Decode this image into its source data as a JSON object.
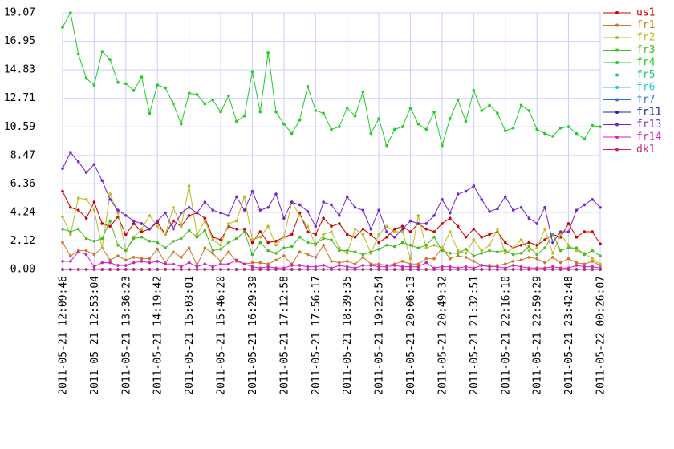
{
  "chart_data": {
    "type": "line",
    "categories": [
      "2011-05-21 12:09:46",
      null,
      null,
      null,
      "2011-05-21 12:53:04",
      null,
      null,
      null,
      "2011-05-21 13:36:23",
      null,
      null,
      null,
      "2011-05-21 14:19:42",
      null,
      null,
      null,
      "2011-05-21 15:03:01",
      null,
      null,
      null,
      "2011-05-21 15:46:20",
      null,
      null,
      null,
      "2011-05-21 16:29:39",
      null,
      null,
      null,
      "2011-05-21 17:12:58",
      null,
      null,
      null,
      "2011-05-21 17:56:17",
      null,
      null,
      null,
      "2011-05-21 18:39:35",
      null,
      null,
      null,
      "2011-05-21 19:22:54",
      null,
      null,
      null,
      "2011-05-21 20:06:13",
      null,
      null,
      null,
      "2011-05-21 20:49:32",
      null,
      null,
      null,
      "2011-05-21 21:32:51",
      null,
      null,
      null,
      "2011-05-21 22:16:10",
      null,
      null,
      null,
      "2011-05-21 22:59:29",
      null,
      null,
      null,
      "2011-05-21 23:42:48",
      null,
      null,
      null,
      "2011-05-22 00:26:07"
    ],
    "ylim": [
      0,
      19.07
    ],
    "yticks": [
      {
        "value": 0,
        "label": "0.00"
      },
      2.12,
      4.24,
      6.36,
      8.47,
      10.59,
      12.71,
      14.83,
      16.95,
      19.07
    ],
    "grid": true,
    "legend": "right",
    "series": [
      {
        "name": "us1",
        "color": "#cc0000",
        "values": [
          5.8,
          4.6,
          4.4,
          3.8,
          5.0,
          3.4,
          3.2,
          3.9,
          2.6,
          3.4,
          2.8,
          3.0,
          3.5,
          2.6,
          3.6,
          3.2,
          4.0,
          4.2,
          3.8,
          2.4,
          2.2,
          3.2,
          3.0,
          3.0,
          2.0,
          2.8,
          2.0,
          2.1,
          2.4,
          2.6,
          4.2,
          2.8,
          2.6,
          3.8,
          3.2,
          3.4,
          2.6,
          2.4,
          3.0,
          2.6,
          2.0,
          2.4,
          3.0,
          3.2,
          2.8,
          3.4,
          3.0,
          2.8,
          3.4,
          3.8,
          3.2,
          2.4,
          3.0,
          2.4,
          2.6,
          2.8,
          2.0,
          1.6,
          1.8,
          2.0,
          1.8,
          2.2,
          2.6,
          2.4,
          3.4,
          2.4,
          2.8,
          2.8,
          1.9
        ]
      },
      {
        "name": "fr1",
        "color": "#cc7722",
        "values": [
          2.0,
          1.0,
          1.4,
          1.4,
          1.1,
          1.6,
          0.7,
          1.0,
          0.7,
          0.9,
          0.8,
          0.8,
          1.5,
          0.5,
          1.3,
          0.9,
          1.6,
          0.3,
          1.6,
          1.2,
          0.6,
          1.3,
          0.6,
          0.4,
          0.5,
          0.5,
          0.4,
          0.7,
          1.0,
          0.4,
          1.3,
          1.1,
          0.9,
          1.8,
          0.6,
          0.5,
          0.6,
          0.4,
          0.9,
          0.4,
          0.4,
          0.3,
          0.4,
          0.6,
          0.4,
          0.4,
          0.8,
          0.8,
          1.6,
          0.8,
          1.0,
          0.9,
          0.6,
          0.3,
          0.3,
          0.3,
          0.4,
          0.6,
          0.7,
          0.9,
          0.8,
          0.5,
          0.9,
          0.5,
          0.8,
          0.5,
          0.4,
          0.6,
          0.3
        ]
      },
      {
        "name": "fr2",
        "color": "#bbbb22",
        "values": [
          3.9,
          2.6,
          5.3,
          5.2,
          4.4,
          1.6,
          5.6,
          4.2,
          1.4,
          2.4,
          3.0,
          4.0,
          3.2,
          2.6,
          4.6,
          3.2,
          6.2,
          2.6,
          3.6,
          2.2,
          1.8,
          3.4,
          3.6,
          5.4,
          2.2,
          2.4,
          3.2,
          1.8,
          2.4,
          5.0,
          4.0,
          3.2,
          1.8,
          2.6,
          2.8,
          1.6,
          1.2,
          3.0,
          2.6,
          1.2,
          2.6,
          3.2,
          2.8,
          2.8,
          0.8,
          4.0,
          1.6,
          1.8,
          1.6,
          2.8,
          1.4,
          1.2,
          2.2,
          1.4,
          1.8,
          3.0,
          1.2,
          1.6,
          2.2,
          1.4,
          1.6,
          3.0,
          1.2,
          2.6,
          1.8,
          1.4,
          1.2,
          0.8,
          0.4
        ]
      },
      {
        "name": "fr3",
        "color": "#44bb22",
        "values": [
          3.0,
          2.8,
          3.0,
          2.3,
          2.1,
          2.3,
          3.6,
          1.8,
          1.4,
          2.3,
          2.4,
          2.1,
          2.0,
          1.6,
          2.1,
          2.3,
          2.9,
          2.4,
          2.9,
          1.4,
          1.5,
          2.0,
          2.3,
          2.8,
          1.1,
          2.0,
          1.4,
          1.2,
          1.6,
          1.7,
          2.4,
          2.0,
          1.9,
          2.3,
          2.2,
          1.4,
          1.4,
          1.3,
          1.1,
          1.3,
          1.5,
          1.8,
          1.7,
          2.0,
          1.8,
          1.6,
          1.8,
          2.4,
          1.4,
          1.2,
          1.2,
          1.5,
          1.0,
          1.2,
          1.4,
          1.3,
          1.4,
          1.1,
          1.2,
          1.7,
          1.1,
          1.6,
          2.6,
          1.4,
          1.6,
          1.6,
          1.1,
          1.4,
          1.0
        ]
      },
      {
        "name": "fr4",
        "color": "#22cc22",
        "values": [
          18.0,
          19.07,
          16.0,
          14.2,
          13.7,
          16.2,
          15.6,
          13.9,
          13.8,
          13.3,
          14.3,
          11.6,
          13.7,
          13.5,
          12.3,
          10.8,
          13.1,
          13.0,
          12.3,
          12.6,
          11.7,
          12.9,
          11.0,
          11.4,
          14.7,
          11.7,
          16.1,
          11.7,
          10.8,
          10.1,
          11.1,
          13.6,
          11.8,
          11.6,
          10.4,
          10.6,
          12.0,
          11.4,
          13.2,
          10.1,
          11.2,
          9.2,
          10.4,
          10.6,
          12.0,
          10.8,
          10.4,
          11.7,
          9.2,
          11.2,
          12.6,
          11.0,
          13.3,
          11.8,
          12.2,
          11.6,
          10.3,
          10.5,
          12.2,
          11.8,
          10.4,
          10.1,
          9.9,
          10.5,
          10.6,
          10.1,
          9.7,
          10.7,
          10.6
        ]
      },
      {
        "name": "fr5",
        "color": "#22cc77",
        "values": [
          0,
          0,
          0,
          0,
          0,
          0,
          0,
          0,
          0,
          0,
          0,
          0,
          0,
          0,
          0,
          0,
          0,
          0,
          0,
          0,
          0,
          0,
          0,
          0,
          0,
          0,
          0,
          0,
          0,
          0,
          0,
          0,
          0,
          0,
          0,
          0,
          0,
          0,
          0,
          0,
          0,
          0,
          0,
          0,
          0,
          0,
          0,
          0,
          0,
          0,
          0,
          0,
          0,
          0,
          0,
          0,
          0,
          0,
          0,
          0,
          0,
          0,
          0,
          0,
          0,
          0,
          0,
          0,
          0
        ]
      },
      {
        "name": "fr6",
        "color": "#22cccc",
        "values": [
          0,
          0,
          0,
          0,
          0,
          0,
          0,
          0,
          0,
          0,
          0,
          0,
          0,
          0,
          0,
          0,
          0,
          0,
          0,
          0,
          0,
          0,
          0,
          0,
          0,
          0,
          0,
          0,
          0,
          0,
          0,
          0,
          0,
          0,
          0,
          0,
          0,
          0,
          0,
          0,
          0,
          0,
          0,
          0,
          0,
          0,
          0,
          0,
          0,
          0,
          0,
          0,
          0,
          0,
          0,
          0,
          0,
          0,
          0,
          0,
          0,
          0,
          0,
          0,
          0,
          0,
          0,
          0,
          0
        ]
      },
      {
        "name": "fr7",
        "color": "#2277cc",
        "values": [
          0,
          0,
          0,
          0,
          0,
          0,
          0,
          0,
          0,
          0,
          0,
          0,
          0,
          0,
          0,
          0,
          0,
          0,
          0,
          0,
          0,
          0,
          0,
          0,
          0,
          0,
          0,
          0,
          0,
          0,
          0,
          0,
          0,
          0,
          0,
          0,
          0,
          0,
          0,
          0,
          0,
          0,
          0,
          0,
          0,
          0,
          0,
          0,
          0,
          0,
          0,
          0,
          0,
          0,
          0,
          0,
          0,
          0,
          0,
          0,
          0,
          0,
          0,
          0,
          0,
          0,
          0,
          0,
          0
        ]
      },
      {
        "name": "fr11",
        "color": "#2222aa",
        "values": [
          0,
          0,
          0,
          0,
          0,
          0,
          0,
          0,
          0,
          0,
          0,
          0,
          0,
          0,
          0,
          0,
          0,
          0,
          0,
          0,
          0,
          0,
          0,
          0,
          0,
          0,
          0,
          0,
          0,
          0,
          0,
          0,
          0,
          0,
          0,
          0,
          0,
          0,
          0,
          0,
          0,
          0,
          0,
          0,
          0,
          0,
          0,
          0,
          0,
          0,
          0,
          0,
          0,
          0,
          0,
          0,
          0,
          0,
          0,
          0,
          0,
          0,
          0,
          0,
          0,
          0,
          0,
          0,
          0
        ]
      },
      {
        "name": "fr13",
        "color": "#7722cc",
        "values": [
          7.5,
          8.7,
          8.0,
          7.2,
          7.8,
          6.6,
          5.2,
          4.4,
          4.0,
          3.6,
          3.4,
          3.0,
          3.6,
          4.2,
          3.0,
          4.2,
          4.6,
          4.2,
          5.0,
          4.4,
          4.2,
          4.0,
          5.4,
          4.4,
          5.8,
          4.4,
          4.6,
          5.6,
          3.8,
          5.0,
          4.8,
          4.3,
          3.2,
          5.0,
          4.8,
          4.0,
          5.4,
          4.6,
          4.4,
          3.0,
          4.4,
          2.8,
          2.4,
          3.0,
          3.6,
          3.4,
          3.4,
          4.0,
          5.2,
          4.2,
          5.6,
          5.8,
          6.2,
          5.2,
          4.3,
          4.5,
          5.4,
          4.4,
          4.6,
          3.8,
          3.4,
          4.6,
          2.0,
          2.8,
          2.8,
          4.4,
          4.8,
          5.2,
          4.6
        ]
      },
      {
        "name": "fr14",
        "color": "#cc22cc",
        "values": [
          0.6,
          0.6,
          1.3,
          1.1,
          0.2,
          0.5,
          0.5,
          0.3,
          0.3,
          0.5,
          0.6,
          0.5,
          0.6,
          0.4,
          0.4,
          0.2,
          0.5,
          0.2,
          0.4,
          0.2,
          0.4,
          0.4,
          0.7,
          0.4,
          0.2,
          0.1,
          0.2,
          0.1,
          0.1,
          0.3,
          0.3,
          0.2,
          0.2,
          0.3,
          0.1,
          0.3,
          0.2,
          0.1,
          0.3,
          0.3,
          0.2,
          0.2,
          0.3,
          0.2,
          0.2,
          0.2,
          0.5,
          0.1,
          0.2,
          0.2,
          0.1,
          0.2,
          0.1,
          0.3,
          0.2,
          0.2,
          0.1,
          0.3,
          0.2,
          0.1,
          0.1,
          0.1,
          0.2,
          0.1,
          0.1,
          0.3,
          0.2,
          0.2,
          0.1
        ]
      },
      {
        "name": "dk1",
        "color": "#cc2277",
        "values": [
          0,
          0,
          0,
          0,
          0,
          0,
          0,
          0,
          0,
          0,
          0,
          0,
          0,
          0,
          0,
          0,
          0,
          0,
          0,
          0,
          0,
          0,
          0,
          0,
          0,
          0,
          0,
          0,
          0,
          0,
          0,
          0,
          0,
          0,
          0,
          0,
          0,
          0,
          0,
          0,
          0,
          0,
          0,
          0,
          0,
          0,
          0,
          0,
          0,
          0,
          0,
          0,
          0,
          0,
          0,
          0,
          0,
          0,
          0,
          0,
          0,
          0,
          0,
          0,
          0,
          0,
          0,
          0,
          0
        ]
      }
    ]
  }
}
